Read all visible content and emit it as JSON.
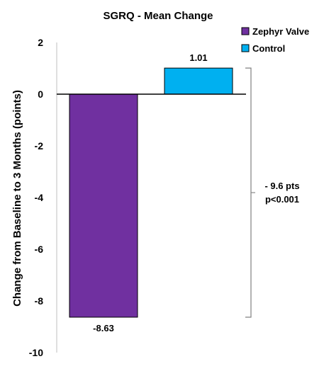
{
  "chart_data": {
    "type": "bar",
    "title": "SGRQ - Mean Change",
    "ylabel": "Change from Baseline to 3 Months (points)",
    "ylim": [
      -10,
      2
    ],
    "yticks": [
      2,
      0,
      -2,
      -4,
      -6,
      -8,
      -10
    ],
    "series": [
      {
        "name": "Zephyr Valve",
        "value": -8.63,
        "label": "-8.63",
        "color": "#7030A0"
      },
      {
        "name": "Control",
        "value": 1.01,
        "label": "1.01",
        "color": "#00B0F0"
      }
    ],
    "annotation": {
      "line1": "- 9.6 pts",
      "line2": "p<0.001"
    },
    "grid": false,
    "legend_position": "top-right"
  }
}
